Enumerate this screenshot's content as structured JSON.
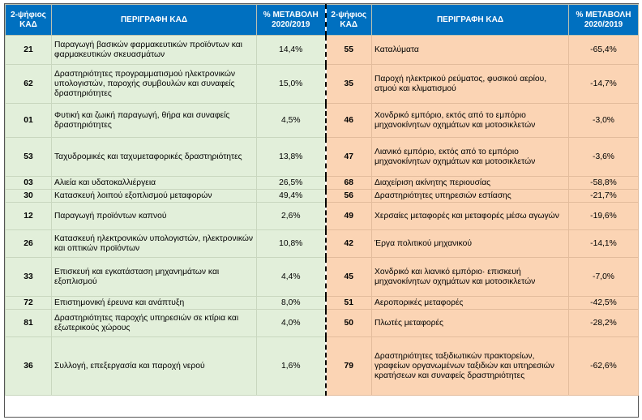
{
  "header": {
    "code_label": "2-ψήφιος ΚΑΔ",
    "desc_label": "ΠΕΡΙΓΡΑΦΗ ΚΑΔ",
    "change_label": "% ΜΕΤΑΒΟΛΗ 2020/2019"
  },
  "rows": [
    {
      "lc": "21",
      "ld": "Παραγωγή βασικών φαρμακευτικών προϊόντων και φαρμακευτικών σκευασμάτων",
      "lp": "14,4%",
      "rc": "55",
      "rd": "Καταλύματα",
      "rp": "-65,4%"
    },
    {
      "lc": "62",
      "ld": "Δραστηριότητες προγραμματισμού ηλεκτρονικών υπολογιστών, παροχής συμβουλών και συναφείς δραστηριότητες",
      "lp": "15,0%",
      "rc": "35",
      "rd": "Παροχή ηλεκτρικού ρεύματος, φυσικού αερίου, ατμού και κλιματισμού",
      "rp": "-14,7%"
    },
    {
      "lc": "01",
      "ld": "Φυτική και ζωική παραγωγή, θήρα και συναφείς δραστηριότητες",
      "lp": "4,5%",
      "rc": "46",
      "rd": "Χονδρικό εμπόριο, εκτός από το εμπόριο μηχανοκίνητων οχημάτων και μοτοσικλετών",
      "rp": "-3,0%"
    },
    {
      "lc": "53",
      "ld": "Ταχυδρομικές και ταχυμεταφορικές δραστηριότητες",
      "lp": "13,8%",
      "rc": "47",
      "rd": "Λιανικό εμπόριο, εκτός από το εμπόριο μηχανοκίνητων οχημάτων και μοτοσικλετών",
      "rp": "-3,6%"
    },
    {
      "lc": "03",
      "ld": "Αλιεία και υδατοκαλλιέργεια",
      "lp": "26,5%",
      "rc": "68",
      "rd": "Διαχείριση ακίνητης περιουσίας",
      "rp": "-58,8%"
    },
    {
      "lc": "30",
      "ld": "Κατασκευή λοιπού εξοπλισμού μεταφορών",
      "lp": "49,4%",
      "rc": "56",
      "rd": "Δραστηριότητες υπηρεσιών εστίασης",
      "rp": "-21,7%"
    },
    {
      "lc": "12",
      "ld": "Παραγωγή προϊόντων καπνού",
      "lp": "2,6%",
      "rc": "49",
      "rd": "Χερσαίες μεταφορές και μεταφορές μέσω αγωγών",
      "rp": "-19,6%"
    },
    {
      "lc": "26",
      "ld": "Κατασκευή ηλεκτρονικών υπολογιστών, ηλεκτρονικών και οπτικών προϊόντων",
      "lp": "10,8%",
      "rc": "42",
      "rd": "Έργα πολιτικού μηχανικού",
      "rp": "-14,1%"
    },
    {
      "lc": "33",
      "ld": "Επισκευή και εγκατάσταση μηχανημάτων και εξοπλισμού",
      "lp": "4,4%",
      "rc": "45",
      "rd": "Χονδρικό και λιανικό εμπόριο· επισκευή μηχανοκίνητων οχημάτων και μοτοσικλετών",
      "rp": "-7,0%"
    },
    {
      "lc": "72",
      "ld": "Επιστημονική έρευνα και ανάπτυξη",
      "lp": "8,0%",
      "rc": "51",
      "rd": "Αεροπορικές μεταφορές",
      "rp": "-42,5%"
    },
    {
      "lc": "81",
      "ld": "Δραστηριότητες παροχής υπηρεσιών σε κτίρια και εξωτερικούς χώρους",
      "lp": "4,0%",
      "rc": "50",
      "rd": "Πλωτές μεταφορές",
      "rp": "-28,2%"
    },
    {
      "lc": "36",
      "ld": "Συλλογή, επεξεργασία και παροχή νερού",
      "lp": "1,6%",
      "rc": "79",
      "rd": "Δραστηριότητες ταξιδιωτικών πρακτορείων, γραφείων οργανωμένων ταξιδιών και υπηρεσιών κρατήσεων και συναφείς δραστηριότητες",
      "rp": "-62,6%"
    }
  ]
}
